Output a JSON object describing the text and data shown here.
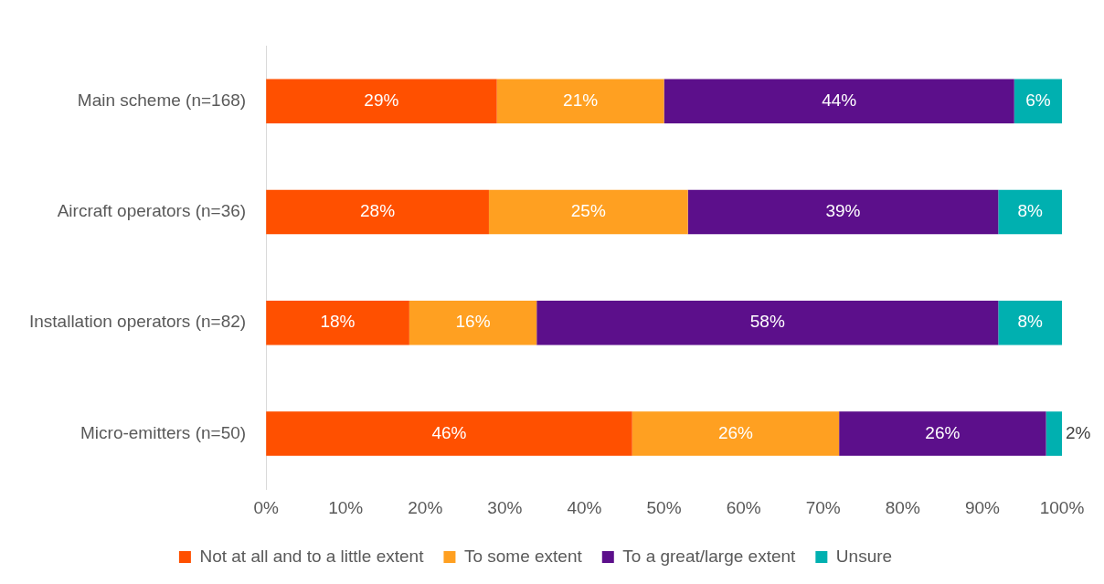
{
  "chart_data": {
    "type": "bar",
    "orientation": "horizontal",
    "stacked": true,
    "legend": "bottom",
    "categories": [
      "Main scheme (n=168)",
      "Aircraft operators (n=36)",
      "Installation operators (n=82)",
      "Micro-emitters (n=50)"
    ],
    "xlim": [
      0,
      100
    ],
    "xticks": [
      {
        "value": 0,
        "label": "0%"
      },
      {
        "value": 10,
        "label": "10%"
      },
      {
        "value": 20,
        "label": "20%"
      },
      {
        "value": 30,
        "label": "30%"
      },
      {
        "value": 40,
        "label": "40%"
      },
      {
        "value": 50,
        "label": "50%"
      },
      {
        "value": 60,
        "label": "60%"
      },
      {
        "value": 70,
        "label": "70%"
      },
      {
        "value": 80,
        "label": "80%"
      },
      {
        "value": 90,
        "label": "90%"
      },
      {
        "value": 100,
        "label": "100%"
      }
    ],
    "series": [
      {
        "name": "Not at all and to a little extent",
        "color": "#ff5000",
        "values": [
          29,
          28,
          18,
          46
        ],
        "value_labels": [
          "29%",
          "28%",
          "18%",
          "46%"
        ]
      },
      {
        "name": "To some extent",
        "color": "#ffa021",
        "values": [
          21,
          25,
          16,
          26
        ],
        "value_labels": [
          "21%",
          "25%",
          "16%",
          "26%"
        ]
      },
      {
        "name": "To a great/large extent",
        "color": "#5c0f8b",
        "values": [
          44,
          39,
          58,
          26
        ],
        "value_labels": [
          "44%",
          "39%",
          "58%",
          "26%"
        ]
      },
      {
        "name": "Unsure",
        "color": "#00b0b0",
        "values": [
          6,
          8,
          8,
          2
        ],
        "value_labels": [
          "6%",
          "8%",
          "8%",
          "2%"
        ]
      }
    ]
  }
}
